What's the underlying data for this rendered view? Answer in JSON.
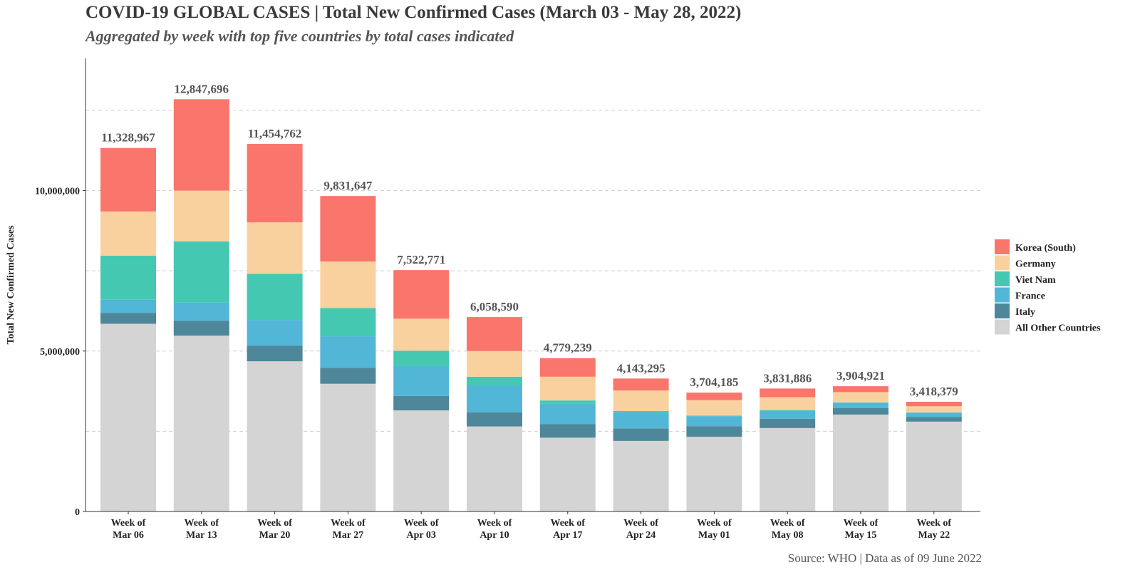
{
  "header": {
    "title": "COVID-19 GLOBAL CASES | Total New Confirmed Cases (March 03 - May 28, 2022)",
    "subtitle": "Aggregated by week with top five countries by total cases indicated"
  },
  "footer": {
    "source": "Source: WHO | Data as of 09 June 2022"
  },
  "chart_data": {
    "type": "bar",
    "stacked": true,
    "title": "COVID-19 GLOBAL CASES | Total New Confirmed Cases (March 03 - May 28, 2022)",
    "subtitle": "Aggregated by week with top five countries by total cases indicated",
    "xlabel": "",
    "ylabel": "Total New Confirmed Cases",
    "ylim": [
      0,
      14000000
    ],
    "yticks": [
      0,
      5000000,
      10000000
    ],
    "ytick_labels": [
      "0",
      "5,000,000",
      "10,000,000"
    ],
    "grid": "horizontal dashed",
    "legend_position": "right",
    "categories": [
      [
        "Week of",
        "Mar 06"
      ],
      [
        "Week of",
        "Mar 13"
      ],
      [
        "Week of",
        "Mar 20"
      ],
      [
        "Week of",
        "Mar 27"
      ],
      [
        "Week of",
        "Apr 03"
      ],
      [
        "Week of",
        "Apr 10"
      ],
      [
        "Week of",
        "Apr 17"
      ],
      [
        "Week of",
        "Apr 24"
      ],
      [
        "Week of",
        "May 01"
      ],
      [
        "Week of",
        "May 08"
      ],
      [
        "Week of",
        "May 15"
      ],
      [
        "Week of",
        "May 22"
      ]
    ],
    "totals": [
      11328967,
      12847696,
      11454762,
      9831647,
      7522771,
      6058590,
      4779239,
      4143295,
      3704185,
      3831886,
      3904921,
      3418379
    ],
    "total_labels": [
      "11,328,967",
      "12,847,696",
      "11,454,762",
      "9,831,647",
      "7,522,771",
      "6,058,590",
      "4,779,239",
      "4,143,295",
      "3,704,185",
      "3,831,886",
      "3,904,921",
      "3,418,379"
    ],
    "series": [
      {
        "name": "All Other Countries",
        "color": "#d4d4d4",
        "values": [
          5850000,
          5480000,
          4680000,
          3980000,
          3150000,
          2650000,
          2300000,
          2200000,
          2330000,
          2600000,
          3020000,
          2800000
        ]
      },
      {
        "name": "Italy",
        "color": "#4e8799",
        "values": [
          340000,
          460000,
          490000,
          500000,
          450000,
          440000,
          420000,
          390000,
          330000,
          290000,
          200000,
          150000
        ]
      },
      {
        "name": "France",
        "color": "#52b6d6",
        "values": [
          410000,
          580000,
          800000,
          980000,
          930000,
          840000,
          640000,
          500000,
          310000,
          250000,
          170000,
          130000
        ]
      },
      {
        "name": "Viet Nam",
        "color": "#45c8b2",
        "values": [
          1370000,
          1900000,
          1440000,
          880000,
          480000,
          270000,
          100000,
          40000,
          20000,
          20000,
          10000,
          10000
        ]
      },
      {
        "name": "Germany",
        "color": "#f9d19e",
        "values": [
          1380000,
          1580000,
          1600000,
          1450000,
          1000000,
          800000,
          740000,
          640000,
          480000,
          400000,
          320000,
          190000
        ]
      },
      {
        "name": "Korea (South)",
        "color": "#fa756b",
        "values": [
          1978967,
          2847696,
          2444762,
          2041647,
          1512771,
          1058590,
          579239,
          373295,
          234185,
          271886,
          184921,
          138379
        ]
      }
    ],
    "legend_order": [
      "Korea (South)",
      "Germany",
      "Viet Nam",
      "France",
      "Italy",
      "All Other Countries"
    ]
  }
}
